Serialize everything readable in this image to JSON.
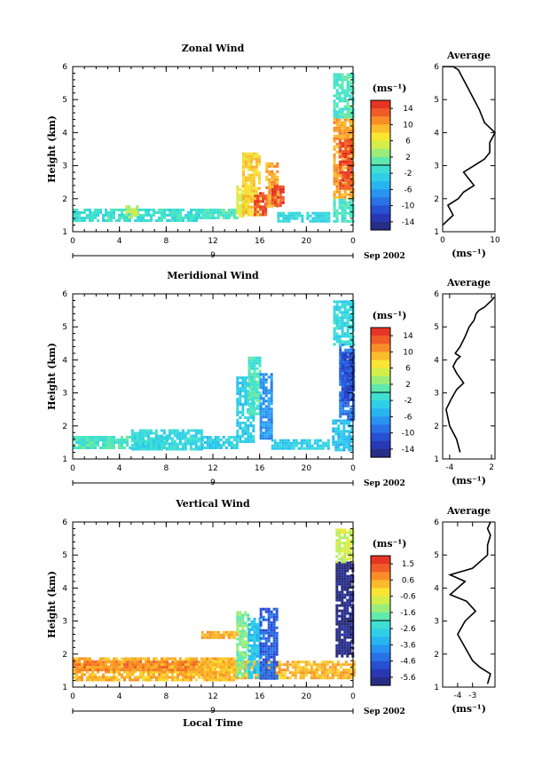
{
  "chart_data": [
    {
      "type": "heatmap",
      "title": "Zonal Wind",
      "ylabel": "Height (km)",
      "ylim": [
        1,
        6
      ],
      "y_ticks": [
        "1",
        "2",
        "3",
        "4",
        "5",
        "6"
      ],
      "xlim": [
        0,
        24
      ],
      "x_ticks": [
        "0",
        "4",
        "8",
        "12",
        "16",
        "20",
        "0"
      ],
      "day_label": "9",
      "date_label": "Sep 2002",
      "colorbar": {
        "unit": "(ms⁻¹)",
        "min": -16,
        "max": 16,
        "ticks": [
          "14",
          "10",
          "6",
          "2",
          "-2",
          "-6",
          "-10",
          "-14"
        ]
      },
      "blobs": [
        {
          "x": [
            0,
            11
          ],
          "y": [
            1.3,
            1.7
          ],
          "value": -1
        },
        {
          "x": [
            4.5,
            5.5
          ],
          "y": [
            1.4,
            1.8
          ],
          "value": 4
        },
        {
          "x": [
            11,
            14
          ],
          "y": [
            1.4,
            1.7
          ],
          "value": 0
        },
        {
          "x": [
            14,
            15
          ],
          "y": [
            1.5,
            2.4
          ],
          "value": 6
        },
        {
          "x": [
            14.5,
            16
          ],
          "y": [
            1.5,
            3.4
          ],
          "value": 8
        },
        {
          "x": [
            15.5,
            16.5
          ],
          "y": [
            1.5,
            2.2
          ],
          "value": 14
        },
        {
          "x": [
            16.5,
            17.5
          ],
          "y": [
            1.8,
            3.1
          ],
          "value": 10
        },
        {
          "x": [
            17,
            18
          ],
          "y": [
            1.8,
            2.4
          ],
          "value": 14
        },
        {
          "x": [
            17.5,
            22
          ],
          "y": [
            1.3,
            1.6
          ],
          "value": -2
        },
        {
          "x": [
            22.3,
            24
          ],
          "y": [
            1.3,
            2.0
          ],
          "value": 0
        },
        {
          "x": [
            22.3,
            24
          ],
          "y": [
            2.0,
            4.5
          ],
          "value": 10
        },
        {
          "x": [
            22.8,
            23.8
          ],
          "y": [
            2.3,
            3.8
          ],
          "value": 14
        },
        {
          "x": [
            22.3,
            24
          ],
          "y": [
            4.5,
            5.8
          ],
          "value": 0
        }
      ],
      "profile": {
        "title": "Average",
        "xlabel": "(ms⁻¹)",
        "xlim": [
          0,
          10
        ],
        "x_ticks": [
          "0",
          "10"
        ],
        "y_ticks": [
          "1",
          "2",
          "3",
          "4",
          "5",
          "6"
        ],
        "x": [
          0,
          2,
          1,
          3,
          4,
          6,
          5,
          4,
          6,
          8,
          9,
          9,
          10,
          8,
          7,
          6,
          5,
          4,
          3,
          2,
          1,
          0
        ],
        "y": [
          1.2,
          1.5,
          1.8,
          2.0,
          2.2,
          2.4,
          2.6,
          2.8,
          3.0,
          3.2,
          3.4,
          3.7,
          4.0,
          4.3,
          4.7,
          5.0,
          5.3,
          5.6,
          5.9,
          6.0,
          6.0,
          6.0
        ]
      }
    },
    {
      "type": "heatmap",
      "title": "Meridional Wind",
      "ylabel": "Height (km)",
      "ylim": [
        1,
        6
      ],
      "y_ticks": [
        "1",
        "2",
        "3",
        "4",
        "5",
        "6"
      ],
      "xlim": [
        0,
        24
      ],
      "x_ticks": [
        "0",
        "4",
        "8",
        "12",
        "16",
        "20",
        "0"
      ],
      "day_label": "9",
      "date_label": "Sep 2002",
      "colorbar": {
        "unit": "(ms⁻¹)",
        "min": -16,
        "max": 16,
        "ticks": [
          "14",
          "10",
          "6",
          "2",
          "-2",
          "-6",
          "-10",
          "-14"
        ]
      },
      "blobs": [
        {
          "x": [
            0,
            8
          ],
          "y": [
            1.3,
            1.7
          ],
          "value": 0
        },
        {
          "x": [
            5,
            11
          ],
          "y": [
            1.3,
            1.9
          ],
          "value": -2
        },
        {
          "x": [
            11,
            14
          ],
          "y": [
            1.3,
            1.7
          ],
          "value": -3
        },
        {
          "x": [
            14,
            15.5
          ],
          "y": [
            1.5,
            3.5
          ],
          "value": -3
        },
        {
          "x": [
            15,
            16
          ],
          "y": [
            2.4,
            4.1
          ],
          "value": 0
        },
        {
          "x": [
            16,
            17
          ],
          "y": [
            1.6,
            3.6
          ],
          "value": -7
        },
        {
          "x": [
            17,
            22
          ],
          "y": [
            1.3,
            1.6
          ],
          "value": -3
        },
        {
          "x": [
            22.2,
            24
          ],
          "y": [
            1.3,
            2.2
          ],
          "value": -4
        },
        {
          "x": [
            22.8,
            24
          ],
          "y": [
            2.2,
            4.5
          ],
          "value": -9
        },
        {
          "x": [
            23,
            24
          ],
          "y": [
            2.8,
            4.2
          ],
          "value": -11
        },
        {
          "x": [
            22.3,
            24
          ],
          "y": [
            4.5,
            5.8
          ],
          "value": -2
        }
      ],
      "profile": {
        "title": "Average",
        "xlabel": "(ms⁻¹)",
        "xlim": [
          -5,
          2.5
        ],
        "x_ticks": [
          "-4",
          "2"
        ],
        "y_ticks": [
          "1",
          "2",
          "3",
          "4",
          "5",
          "6"
        ],
        "x": [
          -2.5,
          -3,
          -4,
          -4.5,
          -3.8,
          -3,
          -2,
          -3,
          -3.5,
          -3,
          -2.5,
          -3.2,
          -2.5,
          -1.8,
          -1.2,
          -0.5,
          -0.2,
          0.2,
          1,
          2,
          2.4
        ],
        "y": [
          1.2,
          1.6,
          2.0,
          2.5,
          2.8,
          3.1,
          3.3,
          3.6,
          3.8,
          4.0,
          4.1,
          4.2,
          4.4,
          4.7,
          5.0,
          5.2,
          5.4,
          5.5,
          5.6,
          5.8,
          5.9
        ]
      }
    },
    {
      "type": "heatmap",
      "title": "Vertical Wind",
      "ylabel": "Height (km)",
      "xlabel": "Local Time",
      "ylim": [
        1,
        6
      ],
      "y_ticks": [
        "1",
        "2",
        "3",
        "4",
        "5",
        "6"
      ],
      "xlim": [
        0,
        24
      ],
      "x_ticks": [
        "0",
        "4",
        "8",
        "12",
        "16",
        "20",
        "0"
      ],
      "day_label": "9",
      "date_label": "Sep 2002",
      "colorbar": {
        "unit": "(ms⁻¹)",
        "min": -6,
        "max": 2,
        "ticks": [
          "1.5",
          "0.6",
          "-0.6",
          "-1.6",
          "-2.6",
          "-3.6",
          "-4.6",
          "-5.6"
        ]
      },
      "blobs": [
        {
          "x": [
            0,
            14
          ],
          "y": [
            1.2,
            1.9
          ],
          "value": 0.3
        },
        {
          "x": [
            0,
            11
          ],
          "y": [
            1.5,
            1.8
          ],
          "value": 0.8
        },
        {
          "x": [
            11,
            24
          ],
          "y": [
            1.3,
            1.8
          ],
          "value": 0.3
        },
        {
          "x": [
            11,
            14
          ],
          "y": [
            2.5,
            2.7
          ],
          "value": 0.3
        },
        {
          "x": [
            14,
            15
          ],
          "y": [
            1.3,
            3.3
          ],
          "value": -1.5
        },
        {
          "x": [
            15,
            16
          ],
          "y": [
            1.3,
            3.1
          ],
          "value": -3
        },
        {
          "x": [
            16,
            17.5
          ],
          "y": [
            1.3,
            3.4
          ],
          "value": -4.5
        },
        {
          "x": [
            22.5,
            24
          ],
          "y": [
            1.9,
            4.8
          ],
          "value": -5.8
        },
        {
          "x": [
            22.5,
            24
          ],
          "y": [
            4.8,
            5.8
          ],
          "value": -0.8
        }
      ],
      "profile": {
        "title": "Average",
        "xlabel": "(ms⁻¹)",
        "xlim": [
          -5,
          -1.5
        ],
        "x_ticks": [
          "-4",
          "-3"
        ],
        "y_ticks": [
          "1",
          "2",
          "3",
          "4",
          "5",
          "6"
        ],
        "x": [
          -2,
          -1.8,
          -2.5,
          -3,
          -3.5,
          -4,
          -3.5,
          -2.8,
          -3.4,
          -4.5,
          -3.5,
          -4.5,
          -3.0,
          -2.0,
          -2.0,
          -1.8,
          -2.0,
          -1.8
        ],
        "y": [
          1.1,
          1.4,
          1.6,
          1.8,
          2.2,
          2.6,
          3.0,
          3.3,
          3.6,
          3.8,
          4.2,
          4.4,
          4.6,
          5.0,
          5.3,
          5.6,
          5.8,
          6.0
        ]
      }
    }
  ]
}
